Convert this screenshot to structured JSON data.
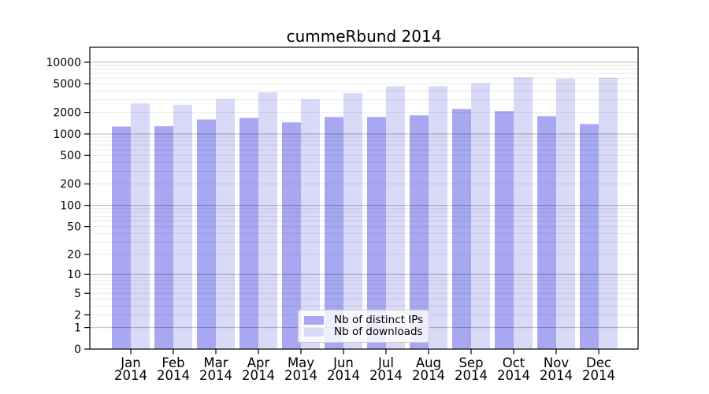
{
  "chart_data": {
    "type": "bar",
    "title": "cummeRbund 2014",
    "year": "2014",
    "categories": [
      "Jan",
      "Feb",
      "Mar",
      "Apr",
      "May",
      "Jun",
      "Jul",
      "Aug",
      "Sep",
      "Oct",
      "Nov",
      "Dec"
    ],
    "series": [
      {
        "name": "Nb of distinct IPs",
        "color": "#a8a8f2",
        "values": [
          1270,
          1280,
          1590,
          1670,
          1450,
          1720,
          1720,
          1820,
          2230,
          2070,
          1770,
          1370
        ]
      },
      {
        "name": "Nb of downloads",
        "color": "#d9d9f8",
        "values": [
          2660,
          2550,
          3070,
          3810,
          3040,
          3720,
          4630,
          4640,
          5130,
          6170,
          5920,
          6070
        ]
      }
    ],
    "xlabel": "",
    "ylabel": "",
    "yscale": "log1p",
    "ylim": [
      0,
      16000
    ],
    "yticks": [
      0,
      1,
      2,
      5,
      10,
      20,
      50,
      100,
      200,
      500,
      1000,
      2000,
      5000,
      10000
    ],
    "ytick_labels": [
      "0",
      "1",
      "2",
      "5",
      "10",
      "20",
      "50",
      "100",
      "200",
      "500",
      "1000",
      "2000",
      "5000",
      "10000"
    ],
    "grid": "horizontal",
    "legend_position": "bottom-center-inside",
    "colors": {
      "axis": "#000000",
      "grid_major_opacity": 0.28,
      "grid_minor_opacity": 0.085,
      "background": "#ffffff"
    }
  }
}
